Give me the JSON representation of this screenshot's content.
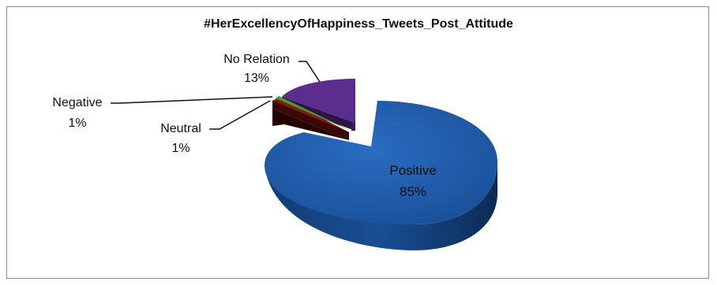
{
  "chart_data": {
    "type": "pie",
    "title": "#HerExcellencyOfHappiness_Tweets_Post_Attitude",
    "slices": [
      {
        "label": "Positive",
        "percent_label": "85%",
        "value": 85,
        "color": "#1f5aa6"
      },
      {
        "label": "No Relation",
        "percent_label": "13%",
        "value": 13,
        "color": "#5b2d8e"
      },
      {
        "label": "Neutral",
        "percent_label": "1%",
        "value": 1,
        "color": "#7f1a14"
      },
      {
        "label": "Negative",
        "percent_label": "1%",
        "value": 1,
        "color": "#4e9a2c"
      }
    ],
    "style": "3d-exploded",
    "legend": "none"
  }
}
